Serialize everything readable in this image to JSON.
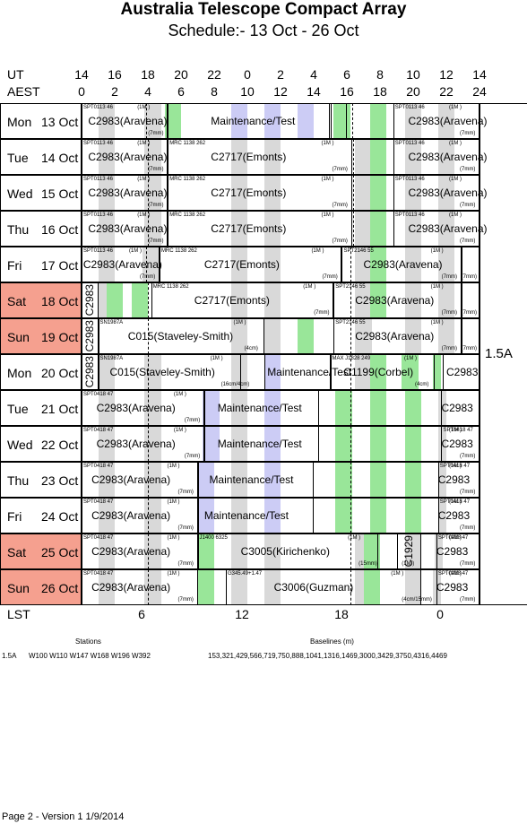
{
  "title": "Australia Telescope Compact Array",
  "subtitle": "Schedule:- 13 Oct - 26 Oct",
  "axes": {
    "ut_label": "UT",
    "aest_label": "AEST",
    "lst_label": "LST",
    "ut_ticks": [
      "14",
      "16",
      "18",
      "20",
      "22",
      "0",
      "2",
      "4",
      "6",
      "8",
      "10",
      "12",
      "14"
    ],
    "aest_ticks": [
      "0",
      "2",
      "4",
      "6",
      "8",
      "10",
      "12",
      "14",
      "16",
      "18",
      "20",
      "22",
      "24"
    ],
    "lst_ticks": [
      "6",
      "12",
      "18",
      "0"
    ]
  },
  "array_config": "1.5A",
  "days": [
    {
      "name": "Mon",
      "date": "13 Oct",
      "weekend": false
    },
    {
      "name": "Tue",
      "date": "14 Oct",
      "weekend": false
    },
    {
      "name": "Wed",
      "date": "15 Oct",
      "weekend": false
    },
    {
      "name": "Thu",
      "date": "16 Oct",
      "weekend": false
    },
    {
      "name": "Fri",
      "date": "17 Oct",
      "weekend": false
    },
    {
      "name": "Sat",
      "date": "18 Oct",
      "weekend": true
    },
    {
      "name": "Sun",
      "date": "19 Oct",
      "weekend": true
    },
    {
      "name": "Mon",
      "date": "20 Oct",
      "weekend": false
    },
    {
      "name": "Tue",
      "date": "21 Oct",
      "weekend": false
    },
    {
      "name": "Wed",
      "date": "22 Oct",
      "weekend": false
    },
    {
      "name": "Thu",
      "date": "23 Oct",
      "weekend": false
    },
    {
      "name": "Fri",
      "date": "24 Oct",
      "weekend": false
    },
    {
      "name": "Sat",
      "date": "25 Oct",
      "weekend": true
    },
    {
      "name": "Sun",
      "date": "26 Oct",
      "weekend": true
    }
  ],
  "programs": {
    "c2983": "C2983(Aravena)",
    "c2983_short": "C2983",
    "c2717": "C2717(Emonts)",
    "c015": "C015(Staveley-Smith)",
    "c1199": "C1199(Corbel)",
    "c3005": "C3005(Kirichenko)",
    "c3006": "C3006(Guzman)",
    "c1929": "C1929",
    "maint": "Maintenance/Test"
  },
  "sources": {
    "spt0113": "SPT0113 46",
    "mrc1138": "MRC 1138 262",
    "spt2146": "SPT2146 55",
    "sn1987a": "SN1987A",
    "max1828": "MAX J1828 249",
    "spt0418": "SPT0418 47",
    "j1400": "J1400 6325",
    "g345": "G345.49+1.47"
  },
  "notes": {
    "bw": "(1M  )",
    "t7mm": "(7mm)",
    "t4cm": "(4cm)",
    "t16cm4cm": "(16cm/4cm)",
    "t15mm": "(15mm)",
    "t4cm15mm": "(4cm/15mm)"
  },
  "footer": {
    "stations_label": "Stations",
    "baselines_label": "Baselines (m)",
    "config": "1.5A",
    "stations": "W100 W110 W147 W168 W196 W392",
    "baselines": "153,321,429,566,719,750,888,1041,1316,1469,3000,3429,3750,4316,4469",
    "page": "Page 2 - Version 1  1/9/2014"
  }
}
